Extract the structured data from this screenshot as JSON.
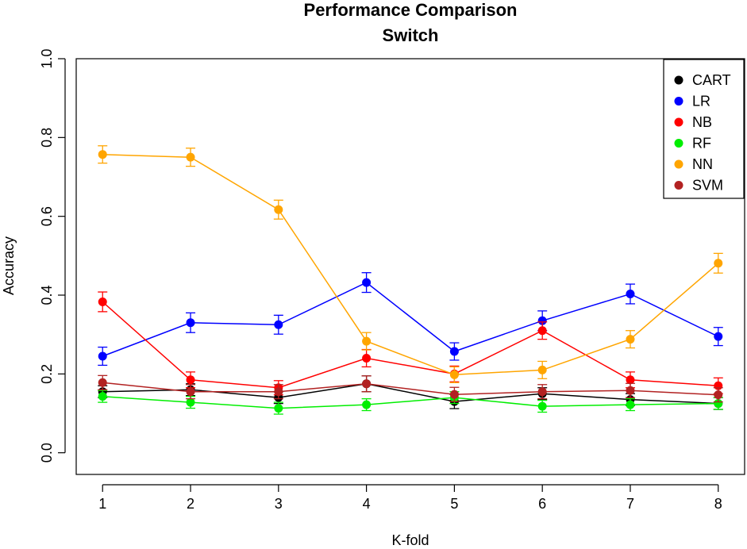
{
  "chart_data": {
    "type": "line",
    "title": "Performance Comparison",
    "subtitle": "Switch",
    "xlabel": "K-fold",
    "ylabel": "Accuracy",
    "x": [
      1,
      2,
      3,
      4,
      5,
      6,
      7,
      8
    ],
    "x_tick_labels": [
      "1",
      "2",
      "3",
      "4",
      "5",
      "6",
      "7",
      "8"
    ],
    "y_ticks": [
      0.0,
      0.2,
      0.4,
      0.6,
      0.8,
      1.0
    ],
    "y_tick_labels": [
      "0.0",
      "0.2",
      "0.4",
      "0.6",
      "0.8",
      "1.0"
    ],
    "xlim": [
      0.7,
      8.3
    ],
    "ylim": [
      -0.055,
      1.0
    ],
    "legend_position": "top-right",
    "grid": false,
    "series": [
      {
        "name": "CART",
        "color": "#000000",
        "values": [
          0.155,
          0.16,
          0.14,
          0.175,
          0.13,
          0.15,
          0.135,
          0.125
        ],
        "errors": [
          0.015,
          0.015,
          0.015,
          0.02,
          0.018,
          0.015,
          0.015,
          0.015
        ]
      },
      {
        "name": "LR",
        "color": "#0000ff",
        "values": [
          0.245,
          0.33,
          0.325,
          0.432,
          0.257,
          0.335,
          0.403,
          0.295
        ],
        "errors": [
          0.023,
          0.025,
          0.024,
          0.025,
          0.022,
          0.025,
          0.025,
          0.023
        ]
      },
      {
        "name": "NB",
        "color": "#ff0000",
        "values": [
          0.383,
          0.185,
          0.165,
          0.24,
          0.2,
          0.31,
          0.185,
          0.17
        ],
        "errors": [
          0.025,
          0.02,
          0.018,
          0.022,
          0.02,
          0.022,
          0.02,
          0.02
        ]
      },
      {
        "name": "RF",
        "color": "#00ee00",
        "values": [
          0.143,
          0.128,
          0.113,
          0.122,
          0.14,
          0.118,
          0.122,
          0.125
        ],
        "errors": [
          0.015,
          0.015,
          0.015,
          0.015,
          0.015,
          0.015,
          0.015,
          0.015
        ]
      },
      {
        "name": "NN",
        "color": "#ffa500",
        "values": [
          0.757,
          0.75,
          0.617,
          0.283,
          0.198,
          0.21,
          0.288,
          0.481
        ],
        "errors": [
          0.022,
          0.023,
          0.024,
          0.022,
          0.02,
          0.022,
          0.022,
          0.025
        ]
      },
      {
        "name": "SVM",
        "color": "#b22222",
        "values": [
          0.178,
          0.155,
          0.155,
          0.175,
          0.148,
          0.155,
          0.158,
          0.147
        ],
        "errors": [
          0.018,
          0.018,
          0.018,
          0.02,
          0.018,
          0.018,
          0.018,
          0.018
        ]
      }
    ]
  }
}
